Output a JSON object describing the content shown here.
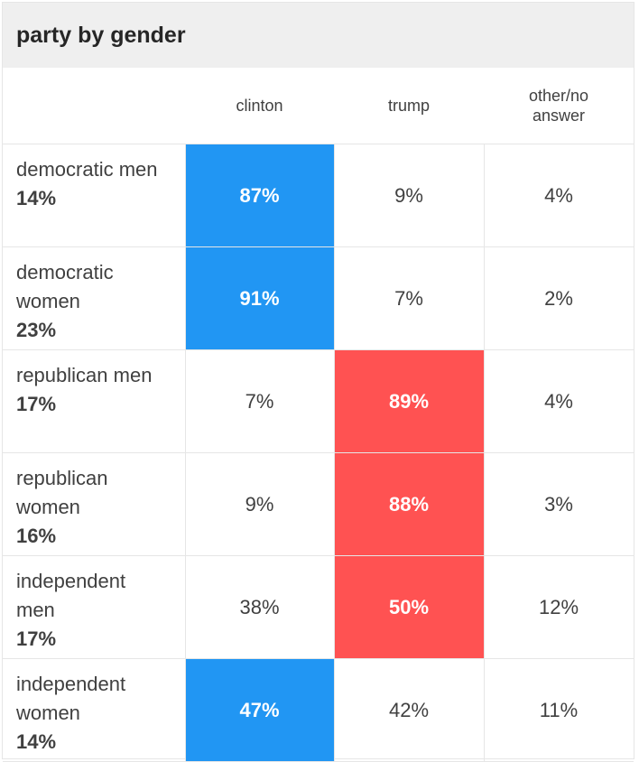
{
  "title": "party by gender",
  "colors": {
    "clinton": "#2196f3",
    "trump": "#ff5252"
  },
  "chart_data": {
    "type": "table",
    "title": "party by gender",
    "columns": [
      "clinton",
      "trump",
      "other/no answer"
    ],
    "rows": [
      {
        "label": "democratic men",
        "share": "14%",
        "values": [
          "87%",
          "9%",
          "4%"
        ],
        "winner": 0
      },
      {
        "label": "democratic women",
        "share": "23%",
        "values": [
          "91%",
          "7%",
          "2%"
        ],
        "winner": 0
      },
      {
        "label": "republican men",
        "share": "17%",
        "values": [
          "7%",
          "89%",
          "4%"
        ],
        "winner": 1
      },
      {
        "label": "republican women",
        "share": "16%",
        "values": [
          "9%",
          "88%",
          "3%"
        ],
        "winner": 1
      },
      {
        "label": "independent men",
        "share": "17%",
        "values": [
          "38%",
          "50%",
          "12%"
        ],
        "winner": 1
      },
      {
        "label": "independent women",
        "share": "14%",
        "values": [
          "47%",
          "42%",
          "11%"
        ],
        "winner": 0
      }
    ]
  }
}
